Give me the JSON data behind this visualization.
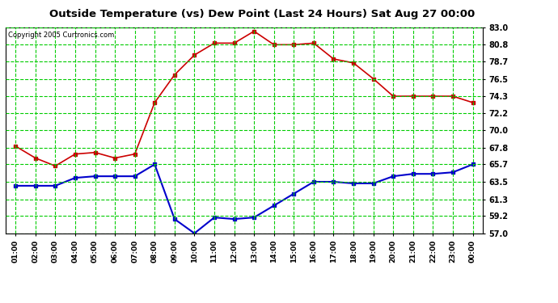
{
  "title": "Outside Temperature (vs) Dew Point (Last 24 Hours) Sat Aug 27 00:00",
  "copyright": "Copyright 2005 Curtronics.com",
  "x_labels": [
    "01:00",
    "02:00",
    "03:00",
    "04:00",
    "05:00",
    "06:00",
    "07:00",
    "08:00",
    "09:00",
    "10:00",
    "11:00",
    "12:00",
    "13:00",
    "14:00",
    "15:00",
    "16:00",
    "17:00",
    "18:00",
    "19:00",
    "20:00",
    "21:00",
    "22:00",
    "23:00",
    "00:00"
  ],
  "temp_data": [
    68.0,
    66.5,
    65.5,
    67.0,
    67.2,
    66.5,
    67.0,
    73.5,
    77.0,
    79.5,
    81.0,
    81.0,
    82.5,
    80.8,
    80.8,
    81.0,
    79.0,
    78.5,
    76.5,
    74.3,
    74.3,
    74.3,
    74.3,
    73.5
  ],
  "dew_data": [
    63.0,
    63.0,
    63.0,
    64.0,
    64.2,
    64.2,
    64.2,
    65.7,
    58.8,
    57.0,
    59.0,
    58.8,
    59.0,
    60.5,
    62.0,
    63.5,
    63.5,
    63.3,
    63.3,
    64.2,
    64.5,
    64.5,
    64.7,
    65.7
  ],
  "temp_color": "#cc0000",
  "dew_color": "#0000cc",
  "bg_color": "#ffffff",
  "plot_bg": "#ffffff",
  "grid_color": "#00cc00",
  "title_color": "#000000",
  "ymin": 57.0,
  "ymax": 83.0,
  "yticks": [
    57.0,
    59.2,
    61.3,
    63.5,
    65.7,
    67.8,
    70.0,
    72.2,
    74.3,
    76.5,
    78.7,
    80.8,
    83.0
  ]
}
